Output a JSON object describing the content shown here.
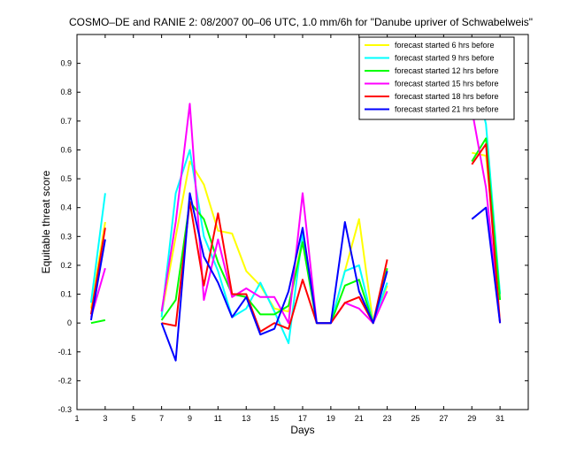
{
  "chart_data": {
    "type": "line",
    "title": "COSMO–DE and RANIE 2: 08/2007 00–06 UTC, 1.0 mm/6h for \"Danube upriver of Schwabelweis\"",
    "xlabel": "Days",
    "ylabel": "Equitable threat score",
    "xlim": [
      1,
      33
    ],
    "ylim": [
      -0.3,
      1.0
    ],
    "xticks": [
      1,
      3,
      5,
      7,
      9,
      11,
      13,
      15,
      17,
      19,
      21,
      23,
      25,
      27,
      29,
      31
    ],
    "yticks": [
      -0.3,
      -0.2,
      -0.1,
      0,
      0.1,
      0.2,
      0.3,
      0.4,
      0.5,
      0.6,
      0.7,
      0.8,
      0.9
    ],
    "legend_position": "top-right",
    "x": [
      2,
      3,
      4,
      5,
      6,
      7,
      8,
      9,
      10,
      11,
      12,
      13,
      14,
      15,
      16,
      17,
      18,
      19,
      20,
      21,
      22,
      23,
      24,
      25,
      26,
      27,
      28,
      29,
      30,
      31
    ],
    "series": [
      {
        "name": "forecast started 6 hrs before",
        "color": "#ffff00",
        "values": [
          0.05,
          0.35,
          null,
          null,
          null,
          0.03,
          0.3,
          0.56,
          0.48,
          0.32,
          0.31,
          0.18,
          0.13,
          0.05,
          0.04,
          0.3,
          0.0,
          0.0,
          0.18,
          0.36,
          0.0,
          0.13,
          null,
          null,
          null,
          null,
          null,
          0.59,
          0.58,
          0.1
        ]
      },
      {
        "name": "forecast started 9 hrs before",
        "color": "#00ffff",
        "values": [
          0.07,
          0.45,
          null,
          null,
          null,
          0.02,
          0.45,
          0.6,
          0.3,
          0.18,
          0.02,
          0.05,
          0.14,
          0.04,
          -0.07,
          0.31,
          0.0,
          0.0,
          0.18,
          0.2,
          0.0,
          0.14,
          null,
          null,
          null,
          null,
          null,
          0.89,
          0.69,
          0.1
        ]
      },
      {
        "name": "forecast started 12 hrs before",
        "color": "#00ff00",
        "values": [
          0.0,
          0.01,
          null,
          null,
          null,
          0.01,
          0.08,
          0.42,
          0.36,
          0.21,
          0.1,
          0.09,
          0.03,
          0.03,
          0.06,
          0.28,
          0.0,
          0.0,
          0.13,
          0.15,
          0.0,
          0.19,
          null,
          null,
          null,
          null,
          null,
          0.56,
          0.64,
          0.08
        ]
      },
      {
        "name": "forecast started 15 hrs before",
        "color": "#ff00ff",
        "values": [
          0.02,
          0.19,
          null,
          null,
          null,
          0.04,
          0.35,
          0.76,
          0.08,
          0.29,
          0.09,
          0.12,
          0.09,
          0.09,
          0.0,
          0.45,
          0.0,
          0.0,
          0.07,
          0.05,
          0.0,
          0.11,
          null,
          null,
          null,
          null,
          null,
          0.74,
          0.47,
          0.0
        ]
      },
      {
        "name": "forecast started 18 hrs before",
        "color": "#ff0000",
        "values": [
          0.03,
          0.33,
          null,
          null,
          null,
          0.0,
          -0.01,
          0.42,
          0.13,
          0.38,
          0.1,
          0.1,
          -0.03,
          0.0,
          -0.02,
          0.15,
          0.0,
          0.0,
          0.07,
          0.09,
          0.0,
          0.22,
          null,
          null,
          null,
          null,
          null,
          0.55,
          0.62,
          0.0
        ]
      },
      {
        "name": "forecast started 21 hrs before",
        "color": "#0000ff",
        "values": [
          0.01,
          0.29,
          null,
          null,
          null,
          0.0,
          -0.13,
          0.45,
          0.23,
          0.14,
          0.02,
          0.09,
          -0.04,
          -0.02,
          0.11,
          0.33,
          0.0,
          0.0,
          0.35,
          0.11,
          0.0,
          0.18,
          null,
          null,
          null,
          null,
          null,
          0.36,
          0.4,
          0.0
        ]
      }
    ]
  }
}
